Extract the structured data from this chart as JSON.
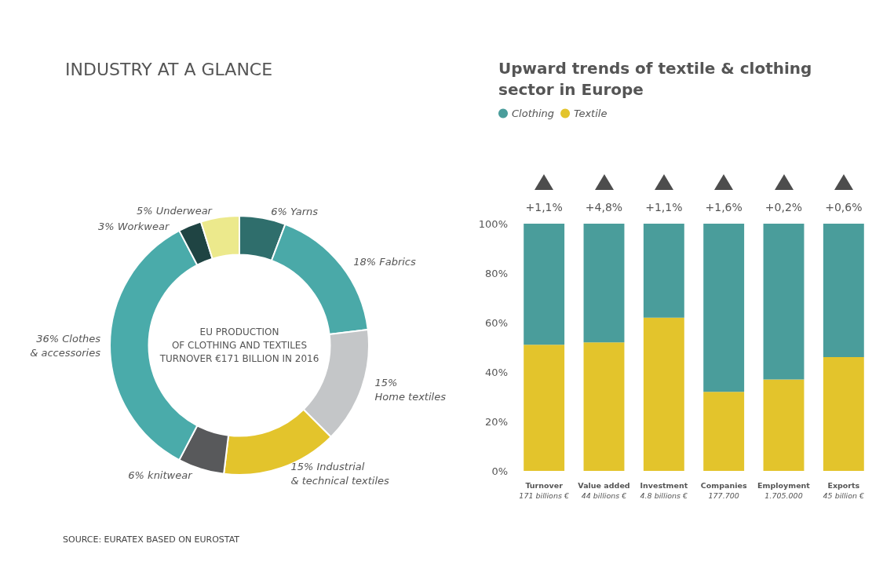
{
  "chart_data": [
    {
      "type": "donut",
      "title": "INDUSTRY AT A GLANCE",
      "categories": [
        "6% Yarns",
        "18% Fabrics",
        "15%\nHome textiles",
        "15% Industrial\n& technical textiles",
        "6% knitwear",
        "36% Clothes\n& accessories",
        "3% Workwear",
        "5% Underwear"
      ],
      "values": [
        6,
        18,
        15,
        15,
        6,
        36,
        3,
        5
      ],
      "colors": [
        "#2f6e6c",
        "#4aa9a8",
        "#c4c6c8",
        "#e3c42c",
        "#58595b",
        "#4aabaa",
        "#1f4443",
        "#ece98c"
      ],
      "annotations": [
        "EU PRODUCTION\nOF CLOTHING AND TEXTILES\nTURNOVER €171 BILLION IN 2016",
        "SOURCE: EURATEX BASED ON EUROSTAT"
      ]
    },
    {
      "type": "bar",
      "title": "Upward trends of textile & clothing\nsector in Europe",
      "stacked": true,
      "legend": "top left",
      "grid": false,
      "categories": [
        "Turnover\n171 billions €",
        "Value added\n44 billions €",
        "Investment\n4.8 billions €",
        "Companies\n177.700",
        "Employment\n1.705.000",
        "Exports\n45 billion €"
      ],
      "series": [
        {
          "name": "Textile",
          "color": "#e3c42c",
          "values": [
            51,
            52,
            62,
            32,
            37,
            46
          ]
        },
        {
          "name": "Clothing",
          "color": "#4a9d9b",
          "values": [
            49,
            48,
            38,
            68,
            63,
            54
          ]
        }
      ],
      "ylim": [
        0,
        100
      ],
      "yticks": [
        {
          "value": 0,
          "label": "0%"
        },
        {
          "value": 20,
          "label": "20%"
        },
        {
          "value": 40,
          "label": "40%"
        },
        {
          "value": 60,
          "label": "60%"
        },
        {
          "value": 80,
          "label": "80%"
        },
        {
          "value": 100,
          "label": "100%"
        }
      ],
      "annotations": [
        "+1,1%",
        "+4,8%",
        "+1,1%",
        "+1,6%",
        "+0,2%",
        "+0,6%"
      ]
    }
  ]
}
